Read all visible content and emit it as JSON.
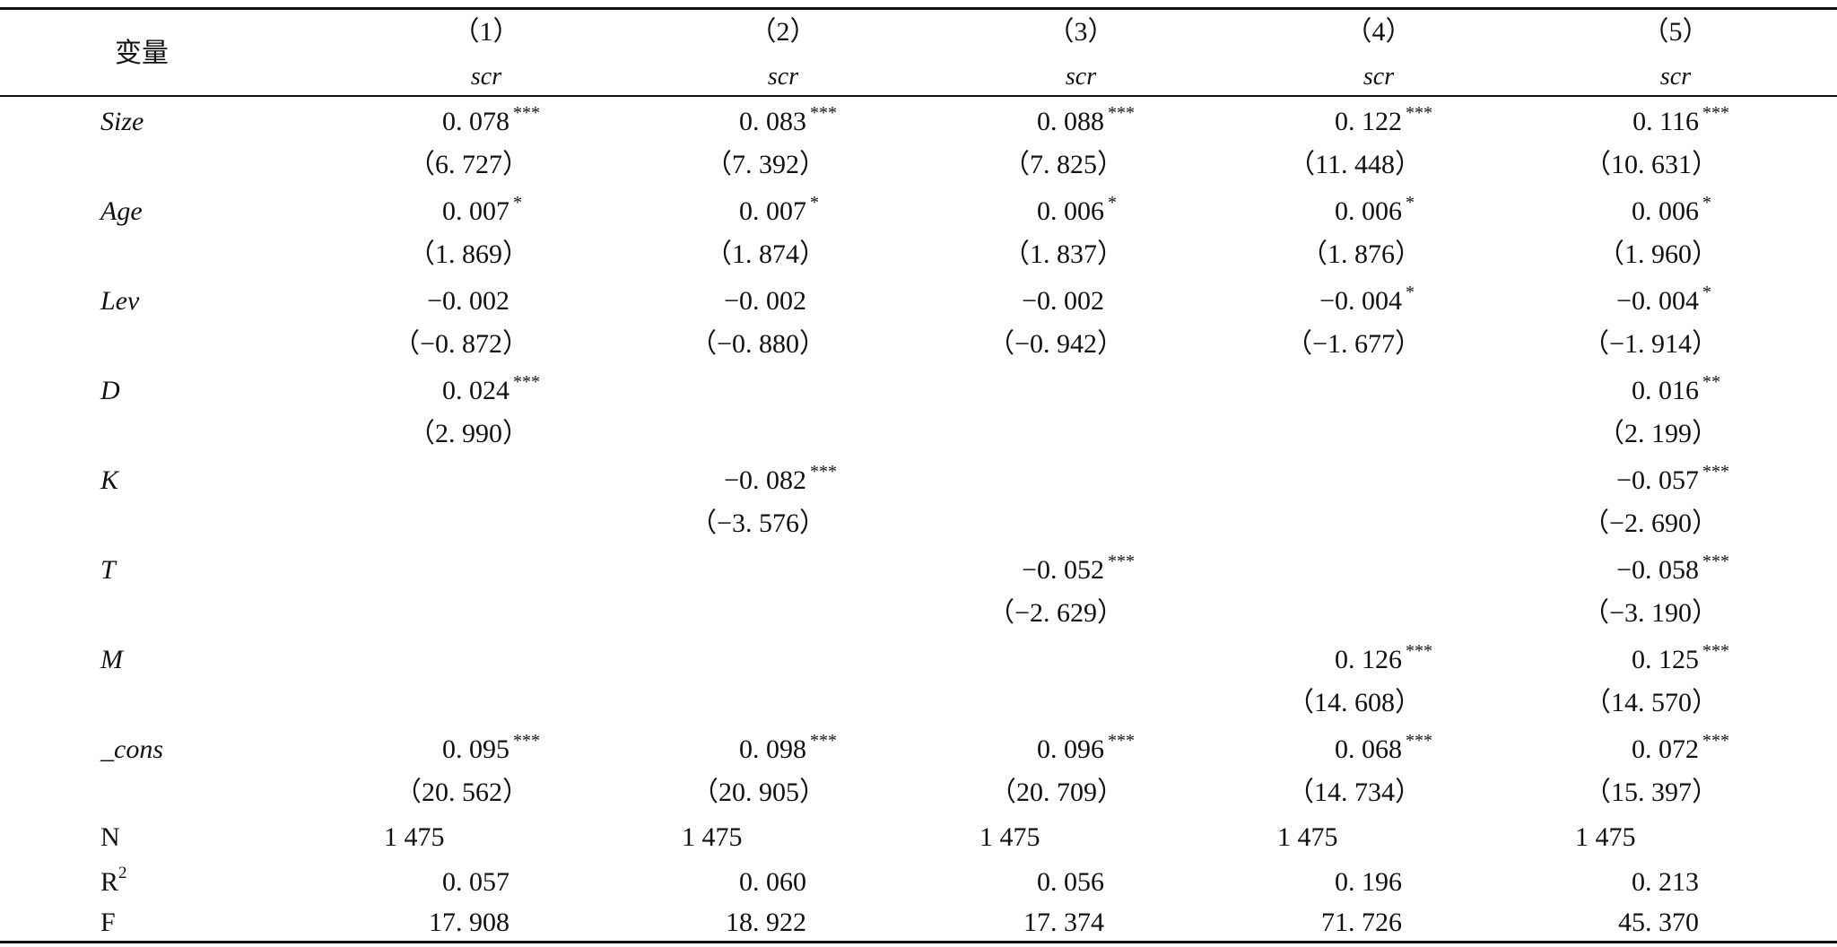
{
  "table": {
    "var_header": "变量",
    "columns": [
      {
        "num": "（1）",
        "dep": "scr"
      },
      {
        "num": "（2）",
        "dep": "scr"
      },
      {
        "num": "（3）",
        "dep": "scr"
      },
      {
        "num": "（4）",
        "dep": "scr"
      },
      {
        "num": "（5）",
        "dep": "scr"
      }
    ],
    "rows": [
      {
        "name": "Size",
        "italic": true,
        "coef": [
          "0. 078",
          "0. 083",
          "0. 088",
          "0. 122",
          "0. 116"
        ],
        "stars": [
          "***",
          "***",
          "***",
          "***",
          "***"
        ],
        "t": [
          "（6. 727）",
          "（7. 392）",
          "（7. 825）",
          "（11. 448）",
          "（10. 631）"
        ]
      },
      {
        "name": "Age",
        "italic": true,
        "coef": [
          "0. 007",
          "0. 007",
          "0. 006",
          "0. 006",
          "0. 006"
        ],
        "stars": [
          "*",
          "*",
          "*",
          "*",
          "*"
        ],
        "t": [
          "（1. 869）",
          "（1. 874）",
          "（1. 837）",
          "（1. 876）",
          "（1. 960）"
        ]
      },
      {
        "name": "Lev",
        "italic": true,
        "coef": [
          "−0. 002",
          "−0. 002",
          "−0. 002",
          "−0. 004",
          "−0. 004"
        ],
        "stars": [
          "",
          "",
          "",
          "*",
          "*"
        ],
        "t": [
          "（−0. 872）",
          "（−0. 880）",
          "（−0. 942）",
          "（−1. 677）",
          "（−1. 914）"
        ]
      },
      {
        "name": "D",
        "italic": true,
        "coef": [
          "0. 024",
          "",
          "",
          "",
          "0. 016"
        ],
        "stars": [
          "***",
          "",
          "",
          "",
          "**"
        ],
        "t": [
          "（2. 990）",
          "",
          "",
          "",
          "（2. 199）"
        ]
      },
      {
        "name": "K",
        "italic": true,
        "coef": [
          "",
          "−0. 082",
          "",
          "",
          "−0. 057"
        ],
        "stars": [
          "",
          "***",
          "",
          "",
          "***"
        ],
        "t": [
          "",
          "（−3. 576）",
          "",
          "",
          "（−2. 690）"
        ]
      },
      {
        "name": "T",
        "italic": true,
        "coef": [
          "",
          "",
          "−0. 052",
          "",
          "−0. 058"
        ],
        "stars": [
          "",
          "",
          "***",
          "",
          "***"
        ],
        "t": [
          "",
          "",
          "（−2. 629）",
          "",
          "（−3. 190）"
        ]
      },
      {
        "name": "M",
        "italic": true,
        "coef": [
          "",
          "",
          "",
          "0. 126",
          "0. 125"
        ],
        "stars": [
          "",
          "",
          "",
          "***",
          "***"
        ],
        "t": [
          "",
          "",
          "",
          "（14. 608）",
          "（14. 570）"
        ]
      },
      {
        "name": "_cons",
        "italic": true,
        "coef": [
          "0. 095",
          "0. 098",
          "0. 096",
          "0. 068",
          "0. 072"
        ],
        "stars": [
          "***",
          "***",
          "***",
          "***",
          "***"
        ],
        "t": [
          "（20. 562）",
          "（20. 905）",
          "（20. 709）",
          "（14. 734）",
          "（15. 397）"
        ]
      }
    ],
    "stats": [
      {
        "name": "N",
        "values": [
          "1 475",
          "1 475",
          "1 475",
          "1 475",
          "1 475"
        ],
        "align": "left"
      },
      {
        "name": "R",
        "sup": "2",
        "values": [
          "0. 057",
          "0. 060",
          "0. 056",
          "0. 196",
          "0. 213"
        ],
        "align": "right"
      },
      {
        "name": "F",
        "values": [
          "17. 908",
          "18. 922",
          "17. 374",
          "71. 726",
          "45. 370"
        ],
        "align": "right"
      }
    ]
  }
}
